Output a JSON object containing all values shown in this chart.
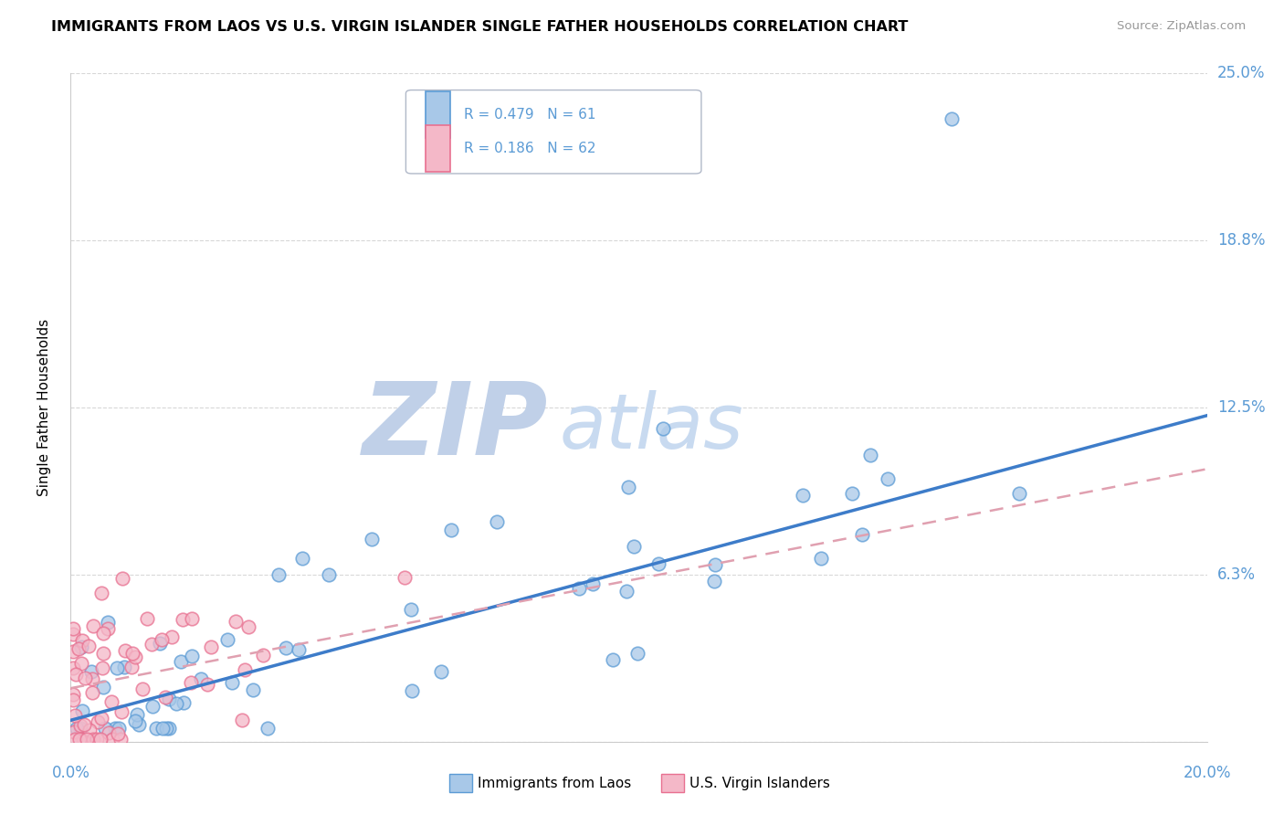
{
  "title": "IMMIGRANTS FROM LAOS VS U.S. VIRGIN ISLANDER SINGLE FATHER HOUSEHOLDS CORRELATION CHART",
  "source": "Source: ZipAtlas.com",
  "ylabel_label": "Single Father Households",
  "xlim": [
    0.0,
    0.2
  ],
  "ylim": [
    0.0,
    0.25
  ],
  "ytick_vals": [
    0.0,
    0.0625,
    0.125,
    0.1875,
    0.25
  ],
  "ytick_labels": [
    "",
    "6.3%",
    "12.5%",
    "18.8%",
    "25.0%"
  ],
  "legend_r1": "R = 0.479",
  "legend_n1": "N = 61",
  "legend_r2": "R = 0.186",
  "legend_n2": "N = 62",
  "color_blue_fill": "#a8c8e8",
  "color_blue_edge": "#5b9bd5",
  "color_pink_fill": "#f4b8c8",
  "color_pink_edge": "#e87090",
  "color_blue_line": "#3d7cc9",
  "color_pink_line": "#e0a0b0",
  "color_axis_text": "#5b9bd5",
  "color_grid": "#d8d8d8",
  "watermark_zip_color": "#c0d0e8",
  "watermark_atlas_color": "#c8daf0",
  "legend_box_edge": "#b0b8c8",
  "bottom_label_blue": "Immigrants from Laos",
  "bottom_label_pink": "U.S. Virgin Islanders",
  "blue_trend_x": [
    0.0,
    0.2
  ],
  "blue_trend_y": [
    0.008,
    0.122
  ],
  "pink_trend_x": [
    0.0,
    0.2
  ],
  "pink_trend_y": [
    0.02,
    0.102
  ]
}
